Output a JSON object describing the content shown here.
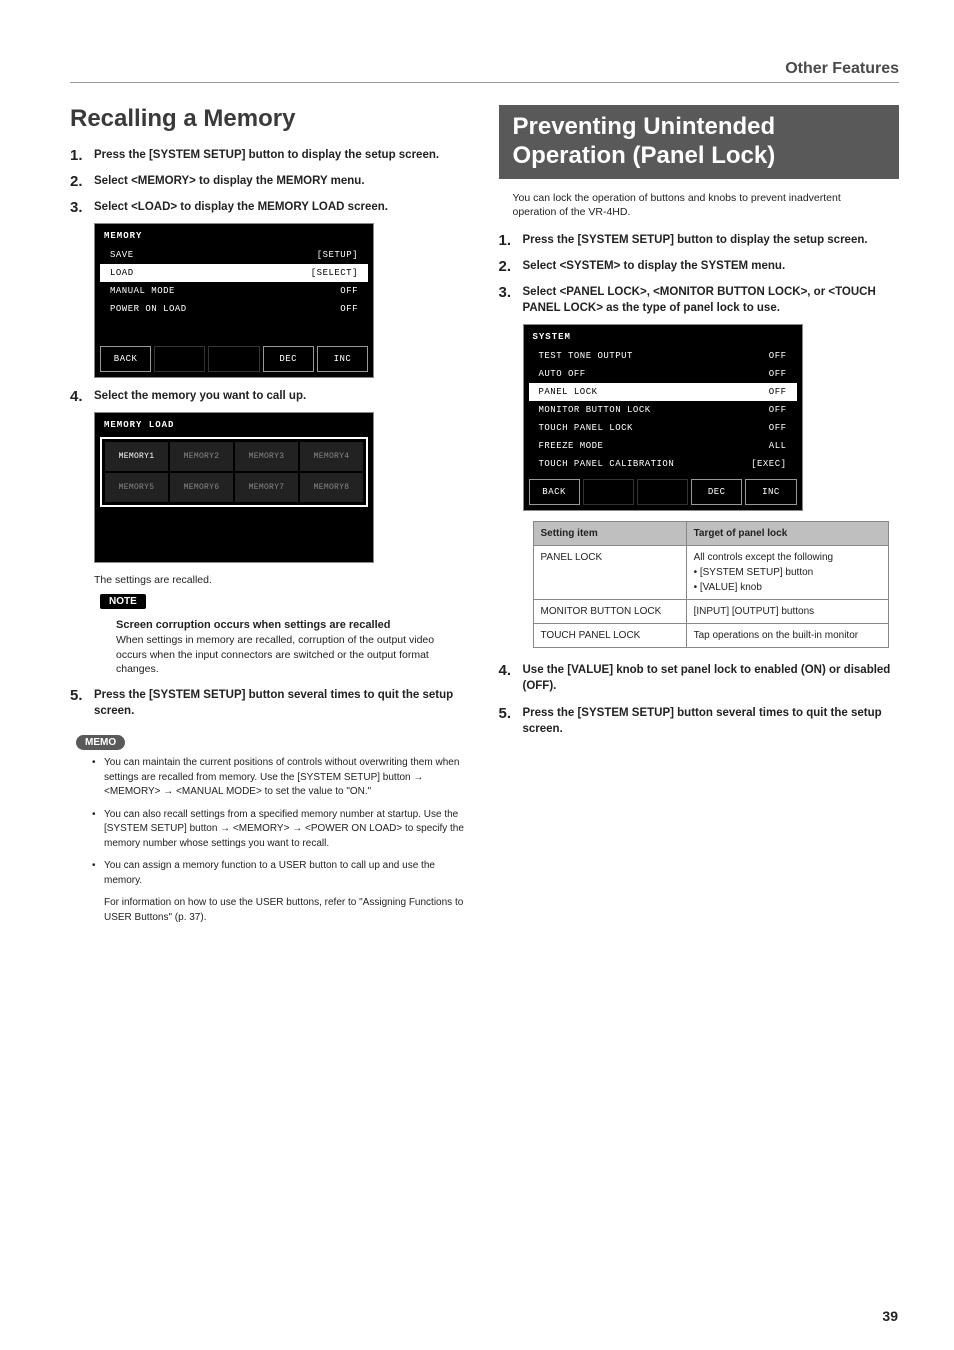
{
  "header": {
    "section": "Other Features"
  },
  "left": {
    "title": "Recalling a Memory",
    "steps": {
      "s1": "Press the [SYSTEM SETUP] button to display the setup screen.",
      "s2": "Select <MEMORY> to display the MEMORY menu.",
      "s3": "Select <LOAD> to display the MEMORY LOAD screen.",
      "s4": "Select the memory you want to call up.",
      "s4_after": "The settings are recalled.",
      "s5": "Press the [SYSTEM SETUP] button several times to quit the setup screen."
    },
    "lcd1": {
      "title": "MEMORY",
      "rows": [
        {
          "l": "SAVE",
          "r": "[SETUP]",
          "sel": false
        },
        {
          "l": "LOAD",
          "r": "[SELECT]",
          "sel": true
        },
        {
          "l": "MANUAL MODE",
          "r": "OFF",
          "sel": false
        },
        {
          "l": "POWER ON LOAD",
          "r": "OFF",
          "sel": false
        }
      ],
      "btns": [
        "BACK",
        "",
        "",
        "DEC",
        "INC"
      ]
    },
    "lcd2": {
      "title": "MEMORY LOAD",
      "cells": [
        "MEMORY1",
        "MEMORY2",
        "MEMORY3",
        "MEMORY4",
        "MEMORY5",
        "MEMORY6",
        "MEMORY7",
        "MEMORY8"
      ]
    },
    "note": {
      "label": "NOTE",
      "title": "Screen corruption occurs when settings are recalled",
      "body": "When settings in memory are recalled, corruption of the output video occurs when the input connectors are switched or the output format changes."
    },
    "memo": {
      "label": "MEMO",
      "items": [
        {
          "t": "You can maintain the current positions of controls without overwriting them when settings are recalled from memory. Use the [SYSTEM SETUP] button → <MEMORY> → <MANUAL MODE> to set the value to \"ON.\"",
          "b": true
        },
        {
          "t": "You can also recall settings from a specified memory number at startup. Use the [SYSTEM SETUP] button → <MEMORY> → <POWER ON LOAD> to specify the memory number whose settings you want to recall.",
          "b": true
        },
        {
          "t": "You can assign a memory function to a USER button to call up and use the memory.",
          "b": true
        },
        {
          "t": "For information on how to use the USER buttons, refer to \"Assigning Functions to USER Buttons\" (p. 37).",
          "b": false
        }
      ]
    }
  },
  "right": {
    "title": "Preventing Unintended Operation (Panel Lock)",
    "intro": "You can lock the operation of buttons and knobs to prevent inadvertent operation of the VR-4HD.",
    "steps": {
      "s1": "Press the [SYSTEM SETUP] button to display the setup screen.",
      "s2": "Select <SYSTEM> to display the SYSTEM menu.",
      "s3": "Select <PANEL LOCK>, <MONITOR BUTTON LOCK>, or <TOUCH PANEL LOCK> as the type of panel lock to use.",
      "s4": "Use the [VALUE] knob to set panel lock to enabled (ON) or disabled (OFF).",
      "s5": "Press the [SYSTEM SETUP] button several times to quit the setup screen."
    },
    "lcd": {
      "title": "SYSTEM",
      "rows": [
        {
          "l": "TEST TONE OUTPUT",
          "r": "OFF",
          "sel": false
        },
        {
          "l": "AUTO OFF",
          "r": "OFF",
          "sel": false
        },
        {
          "l": "PANEL LOCK",
          "r": "OFF",
          "sel": true
        },
        {
          "l": "MONITOR BUTTON LOCK",
          "r": "OFF",
          "sel": false
        },
        {
          "l": "TOUCH PANEL LOCK",
          "r": "OFF",
          "sel": false
        },
        {
          "l": "FREEZE MODE",
          "r": "ALL",
          "sel": false
        },
        {
          "l": "TOUCH PANEL CALIBRATION",
          "r": "[EXEC]",
          "sel": false
        }
      ],
      "btns": [
        "BACK",
        "",
        "",
        "DEC",
        "INC"
      ]
    },
    "table": {
      "head": [
        "Setting item",
        "Target of panel lock"
      ],
      "rows": [
        {
          "k": "PANEL LOCK",
          "v_line": "All controls except the following",
          "v_items": [
            "[SYSTEM SETUP] button",
            "[VALUE] knob"
          ]
        },
        {
          "k": "MONITOR BUTTON LOCK",
          "v_line": "[INPUT] [OUTPUT] buttons",
          "v_items": []
        },
        {
          "k": "TOUCH PANEL LOCK",
          "v_line": "Tap operations on the built-in monitor",
          "v_items": []
        }
      ]
    }
  },
  "page": "39"
}
